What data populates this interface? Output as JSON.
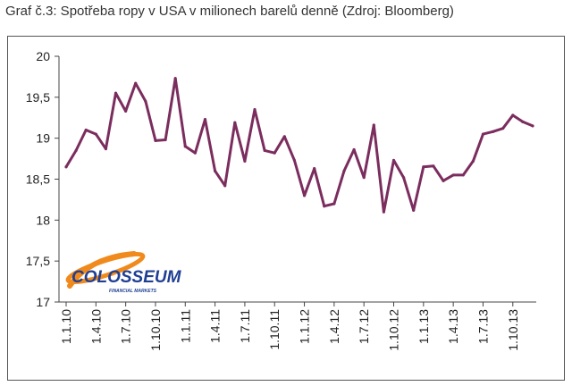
{
  "caption": "Graf č.3: Spotřeba ropy v USA v milionech barelů denně (Zdroj: Bloomberg)",
  "logo": {
    "name": "COLOSSEUM",
    "tagline": "FINANCIAL MARKETS"
  },
  "colors": {
    "line": "#7b2d5e",
    "axis": "#444444",
    "logo_blue": "#1f3f93",
    "logo_orange": "#f08a1c"
  },
  "chart_data": {
    "type": "line",
    "title": "",
    "xlabel": "",
    "ylabel": "",
    "ylim": [
      17,
      20
    ],
    "yticks": [
      "17",
      "17,5",
      "18",
      "18,5",
      "19",
      "19,5",
      "20"
    ],
    "ytick_values": [
      17,
      17.5,
      18,
      18.5,
      19,
      19.5,
      20
    ],
    "xtick_labels": [
      "1.1.10",
      "1.4.10",
      "1.7.10",
      "1.10.10",
      "1.1.11",
      "1.4.11",
      "1.7.11",
      "1.10.11",
      "1.1.12",
      "1.4.12",
      "1.7.12",
      "1.10.12",
      "1.1.13",
      "1.4.13",
      "1.7.13",
      "1.10.13"
    ],
    "grid": false,
    "legend": "none",
    "series": [
      {
        "values": [
          18.65,
          18.85,
          19.1,
          19.05,
          18.87,
          19.55,
          19.33,
          19.67,
          19.45,
          18.97,
          18.98,
          19.73,
          18.9,
          18.82,
          19.23,
          18.6,
          18.42,
          19.19,
          18.72,
          19.35,
          18.85,
          18.82,
          19.02,
          18.73,
          18.3,
          18.63,
          18.17,
          18.2,
          18.6,
          18.86,
          18.52,
          19.16,
          18.1,
          18.73,
          18.52,
          18.12,
          18.65,
          18.66,
          18.48,
          18.55,
          18.55,
          18.72,
          19.05,
          19.08,
          19.12,
          19.28,
          19.2,
          19.15
        ]
      }
    ]
  }
}
